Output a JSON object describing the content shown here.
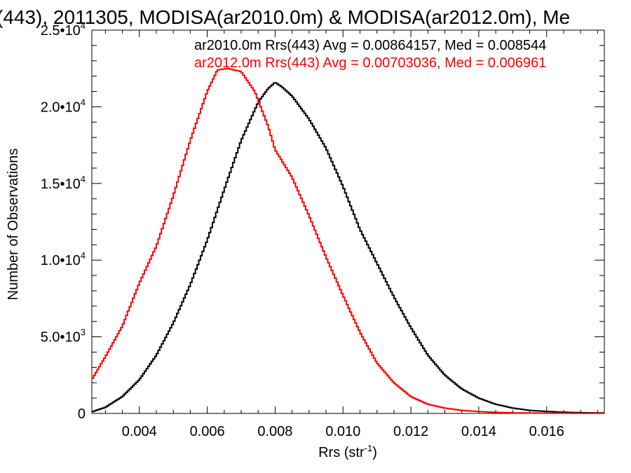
{
  "chart_data": {
    "type": "line",
    "title": "(443), 2011305, MODISA(ar2010.0m) & MODISA(ar2012.0m), Me",
    "xlabel_main": "Rrs (str",
    "xlabel_sup": "-1",
    "xlabel_close": ")",
    "ylabel": "Number of Observations",
    "xlim": [
      0.0026,
      0.0177
    ],
    "ylim": [
      0,
      25000
    ],
    "x_ticks": [
      {
        "value": 0.004,
        "label": "0.004"
      },
      {
        "value": 0.006,
        "label": "0.006"
      },
      {
        "value": 0.008,
        "label": "0.008"
      },
      {
        "value": 0.01,
        "label": "0.010"
      },
      {
        "value": 0.012,
        "label": "0.012"
      },
      {
        "value": 0.014,
        "label": "0.014"
      },
      {
        "value": 0.016,
        "label": "0.016"
      }
    ],
    "y_ticks": [
      {
        "value": 0,
        "mant": "0",
        "exp": ""
      },
      {
        "value": 5000,
        "mant": "5.0•10",
        "exp": "3"
      },
      {
        "value": 10000,
        "mant": "1.0•10",
        "exp": "4"
      },
      {
        "value": 15000,
        "mant": "1.5•10",
        "exp": "4"
      },
      {
        "value": 20000,
        "mant": "2.0•10",
        "exp": "4"
      },
      {
        "value": 25000,
        "mant": "2.5•10",
        "exp": "4"
      }
    ],
    "grid": false,
    "legend_position": "top-right",
    "series": [
      {
        "name": "ar2010.0m Rrs(443) Avg = 0.00864157, Med = 0.008544",
        "color": "#000000",
        "x": [
          0.0026,
          0.003,
          0.0035,
          0.004,
          0.0045,
          0.005,
          0.0055,
          0.006,
          0.0065,
          0.007,
          0.0075,
          0.0078,
          0.008,
          0.0082,
          0.0085,
          0.009,
          0.0095,
          0.01,
          0.0105,
          0.011,
          0.0115,
          0.012,
          0.0125,
          0.013,
          0.0135,
          0.014,
          0.0145,
          0.015,
          0.0155,
          0.016,
          0.0165,
          0.017,
          0.0177
        ],
        "y": [
          100,
          400,
          1100,
          2200,
          3800,
          5900,
          8400,
          11300,
          14600,
          17800,
          20300,
          21200,
          21600,
          21300,
          20700,
          19200,
          17300,
          14800,
          12000,
          9800,
          7600,
          5600,
          3800,
          2500,
          1600,
          1000,
          600,
          350,
          200,
          130,
          80,
          50,
          30
        ]
      },
      {
        "name": "ar2012.0m Rrs(443) Avg = 0.00703036, Med = 0.006961",
        "color": "#ff0000",
        "x": [
          0.0026,
          0.003,
          0.0035,
          0.004,
          0.0045,
          0.005,
          0.0055,
          0.006,
          0.0063,
          0.0066,
          0.007,
          0.0074,
          0.0078,
          0.008,
          0.0085,
          0.009,
          0.0095,
          0.01,
          0.0105,
          0.011,
          0.0115,
          0.012,
          0.0125,
          0.013,
          0.0135,
          0.014,
          0.0145,
          0.015,
          0.016,
          0.0177
        ],
        "y": [
          2200,
          3700,
          5700,
          8500,
          10900,
          14200,
          17800,
          21000,
          22400,
          22500,
          22300,
          21000,
          18700,
          17200,
          15400,
          12900,
          10200,
          7700,
          5300,
          3300,
          2000,
          1100,
          600,
          350,
          200,
          120,
          70,
          40,
          20,
          10
        ]
      }
    ]
  }
}
